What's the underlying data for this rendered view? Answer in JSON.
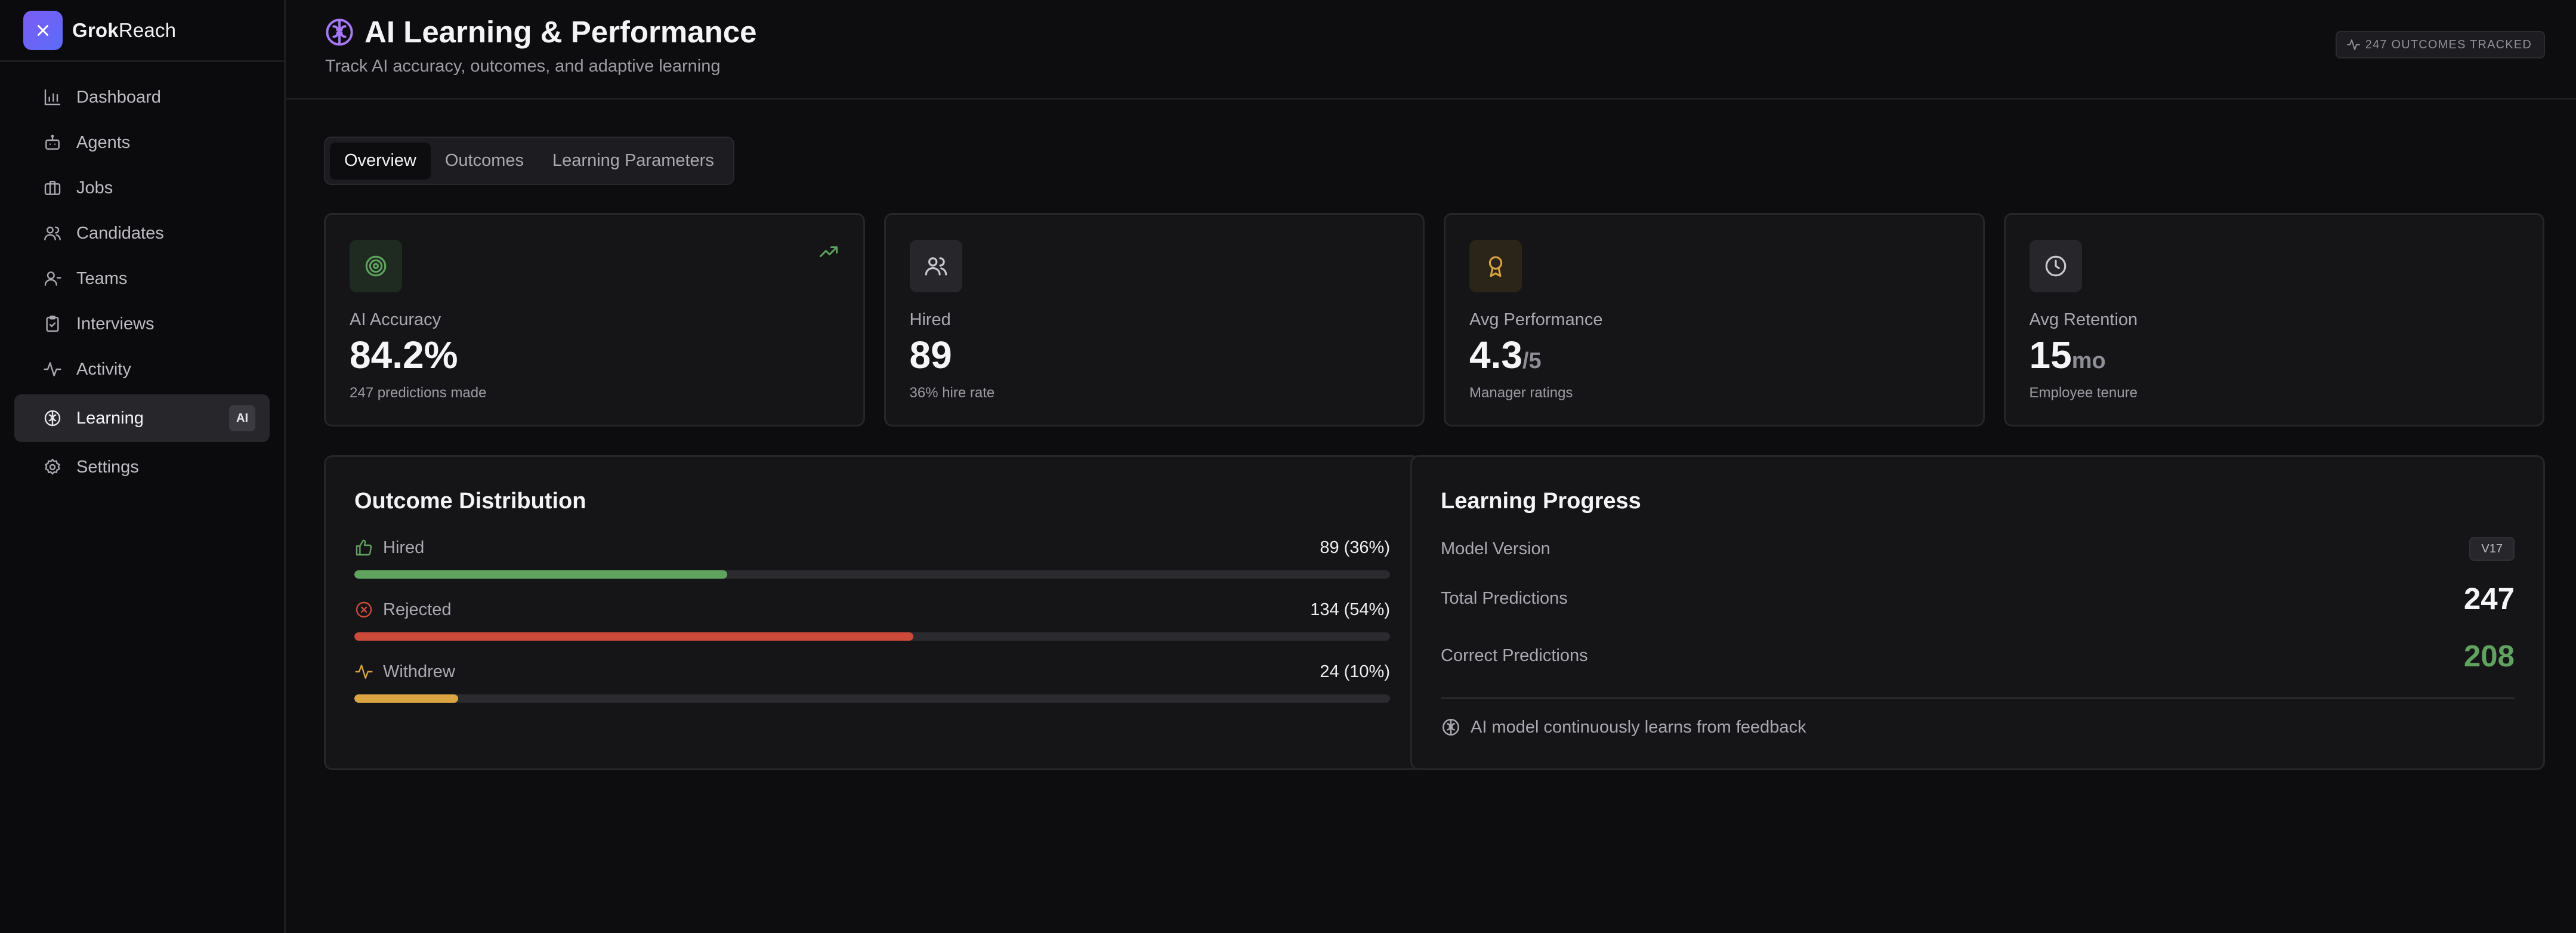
{
  "brand": {
    "name_bold": "Grok",
    "name_rest": "Reach"
  },
  "sidebar": {
    "items": [
      {
        "label": "Dashboard",
        "icon": "bar-chart-icon"
      },
      {
        "label": "Agents",
        "icon": "bot-icon"
      },
      {
        "label": "Jobs",
        "icon": "briefcase-icon"
      },
      {
        "label": "Candidates",
        "icon": "users-icon"
      },
      {
        "label": "Teams",
        "icon": "user-icon"
      },
      {
        "label": "Interviews",
        "icon": "clipboard-icon"
      },
      {
        "label": "Activity",
        "icon": "activity-icon"
      },
      {
        "label": "Learning",
        "icon": "brain-icon",
        "active": true,
        "badge": "AI"
      },
      {
        "label": "Settings",
        "icon": "gear-icon"
      }
    ]
  },
  "header": {
    "title": "AI Learning & Performance",
    "subtitle": "Track AI accuracy, outcomes, and adaptive learning",
    "tracked": "247 OUTCOMES TRACKED"
  },
  "tabs": [
    {
      "label": "Overview",
      "active": true
    },
    {
      "label": "Outcomes"
    },
    {
      "label": "Learning Parameters"
    }
  ],
  "stats": [
    {
      "label": "AI Accuracy",
      "value": "84.2%",
      "unit": "",
      "sub": "247 predictions made",
      "icon": "target-icon",
      "color": "#5fa35f"
    },
    {
      "label": "Hired",
      "value": "89",
      "unit": "",
      "sub": "36% hire rate",
      "icon": "users-icon",
      "color": "#c9c9cf"
    },
    {
      "label": "Avg Performance",
      "value": "4.3",
      "unit": "/5",
      "sub": "Manager ratings",
      "icon": "award-icon",
      "color": "#d9a441"
    },
    {
      "label": "Avg Retention",
      "value": "15",
      "unit": "mo",
      "sub": "Employee tenure",
      "icon": "clock-icon",
      "color": "#c9c9cf"
    }
  ],
  "distribution": {
    "title": "Outcome Distribution",
    "rows": [
      {
        "label": "Hired",
        "value": "89 (36%)",
        "percent": 36,
        "color": "#5fa35f",
        "icon": "thumbs-up-icon"
      },
      {
        "label": "Rejected",
        "value": "134 (54%)",
        "percent": 54,
        "color": "#cc4a3a",
        "icon": "x-circle-icon"
      },
      {
        "label": "Withdrew",
        "value": "24 (10%)",
        "percent": 10,
        "color": "#d9a441",
        "icon": "activity-icon"
      }
    ]
  },
  "learning": {
    "title": "Learning Progress",
    "model_version_label": "Model Version",
    "model_version": "V17",
    "total_label": "Total Predictions",
    "total": "247",
    "correct_label": "Correct Predictions",
    "correct": "208",
    "note": "AI model continuously learns from feedback"
  }
}
